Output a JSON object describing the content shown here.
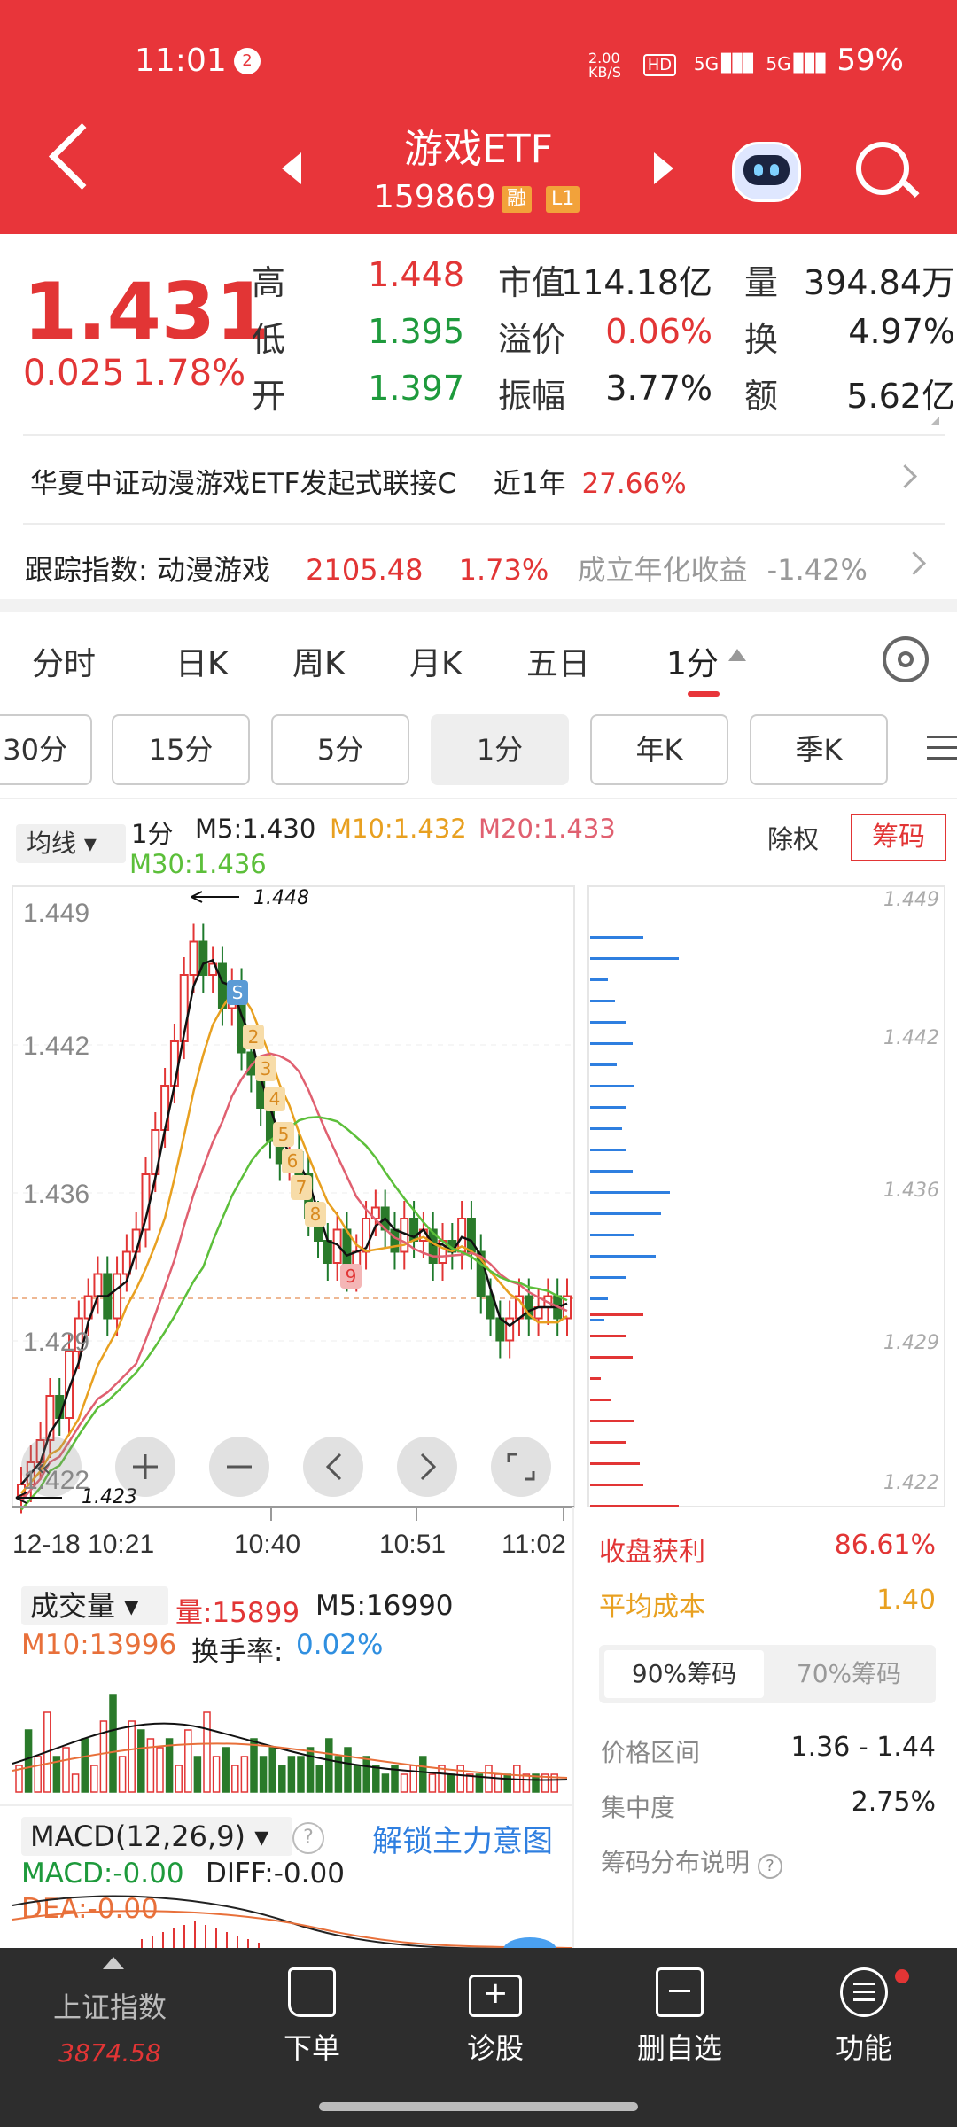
{
  "status_bar": {
    "time": "11:01",
    "notif": "2",
    "net_speed": "2.00 KB/S",
    "hd": "HD",
    "signal1": "5G",
    "signal2": "5G",
    "battery": "59%"
  },
  "header": {
    "title": "游戏ETF",
    "code": "159869",
    "tag1": "融",
    "tag2": "L1"
  },
  "quote": {
    "price": "1.431",
    "change": "0.025",
    "change_pct": "1.78%",
    "rows": [
      {
        "l1": "高",
        "v1": "1.448",
        "c1": "red",
        "l2": "市值",
        "v2": "114.18亿",
        "c2": "dark",
        "l3": "量",
        "v3": "394.84万"
      },
      {
        "l1": "低",
        "v1": "1.395",
        "c1": "green",
        "l2": "溢价",
        "v2": "0.06%",
        "c2": "red",
        "l3": "换",
        "v3": "4.97%"
      },
      {
        "l1": "开",
        "v1": "1.397",
        "c1": "green",
        "l2": "振幅",
        "v2": "3.77%",
        "c2": "dark",
        "l3": "额",
        "v3": "5.62亿"
      }
    ]
  },
  "fund_link": {
    "name": "华夏中证动漫游戏ETF发起式联接C",
    "period": "近1年",
    "ret": "27.66%"
  },
  "tracking": {
    "label": "跟踪指数: 动漫游戏",
    "value": "2105.48",
    "pct": "1.73%",
    "since_label": "成立年化收益",
    "since_val": "-1.42%"
  },
  "tabs": [
    "分时",
    "日K",
    "周K",
    "月K",
    "五日",
    "1分"
  ],
  "periods": [
    "30分",
    "15分",
    "5分",
    "1分",
    "年K",
    "季K"
  ],
  "ma_legend": {
    "selector": "均线",
    "period": "1分",
    "m5": "M5:1.430",
    "m10": "M10:1.432",
    "m20": "M20:1.433",
    "m30": "M30:1.436",
    "exright": "除权",
    "chip": "筹码"
  },
  "kline": {
    "y_labels": [
      "1.449",
      "1.442",
      "1.436",
      "1.429",
      "1.422"
    ],
    "x_labels": [
      "12-18 10:21",
      "10:40",
      "10:51",
      "11:02"
    ],
    "high_mark": "1.448",
    "low_mark": "1.423",
    "td_labels": [
      "S",
      "2",
      "3",
      "4",
      "5",
      "6",
      "7",
      "8",
      "9"
    ]
  },
  "chip_panel": {
    "y_labels": [
      "1.449",
      "1.442",
      "1.436",
      "1.429",
      "1.422"
    ],
    "profit_label": "收盘获利",
    "profit_val": "86.61%",
    "cost_label": "平均成本",
    "cost_val": "1.40",
    "tab90": "90%筹码",
    "tab70": "70%筹码",
    "range_label": "价格区间",
    "range_val": "1.36 - 1.44",
    "conc_label": "集中度",
    "conc_val": "2.75%",
    "explain": "筹码分布说明"
  },
  "volume": {
    "selector": "成交量",
    "vol": "量:15899",
    "m5": "M5:16990",
    "m10": "M10:13996",
    "turnover_label": "换手率:",
    "turnover": "0.02%"
  },
  "macd": {
    "selector": "MACD(12,26,9)",
    "unlock": "解锁主力意图",
    "macd": "MACD:-0.00",
    "diff": "DIFF:-0.00",
    "dea": "DEA:-0.00"
  },
  "bottom_nav": {
    "index_name": "上证指数",
    "index_val": "3874.58",
    "items": [
      "下单",
      "诊股",
      "删自选",
      "功能"
    ]
  },
  "colors": {
    "header_red": "#e8353a",
    "up_red": "#e23535",
    "down_green": "#1e9a3c",
    "m10_orange": "#e8a020",
    "m20_pink": "#e06070",
    "m30_green": "#5cbf3a",
    "chip_blue": "#2f7fe0"
  }
}
